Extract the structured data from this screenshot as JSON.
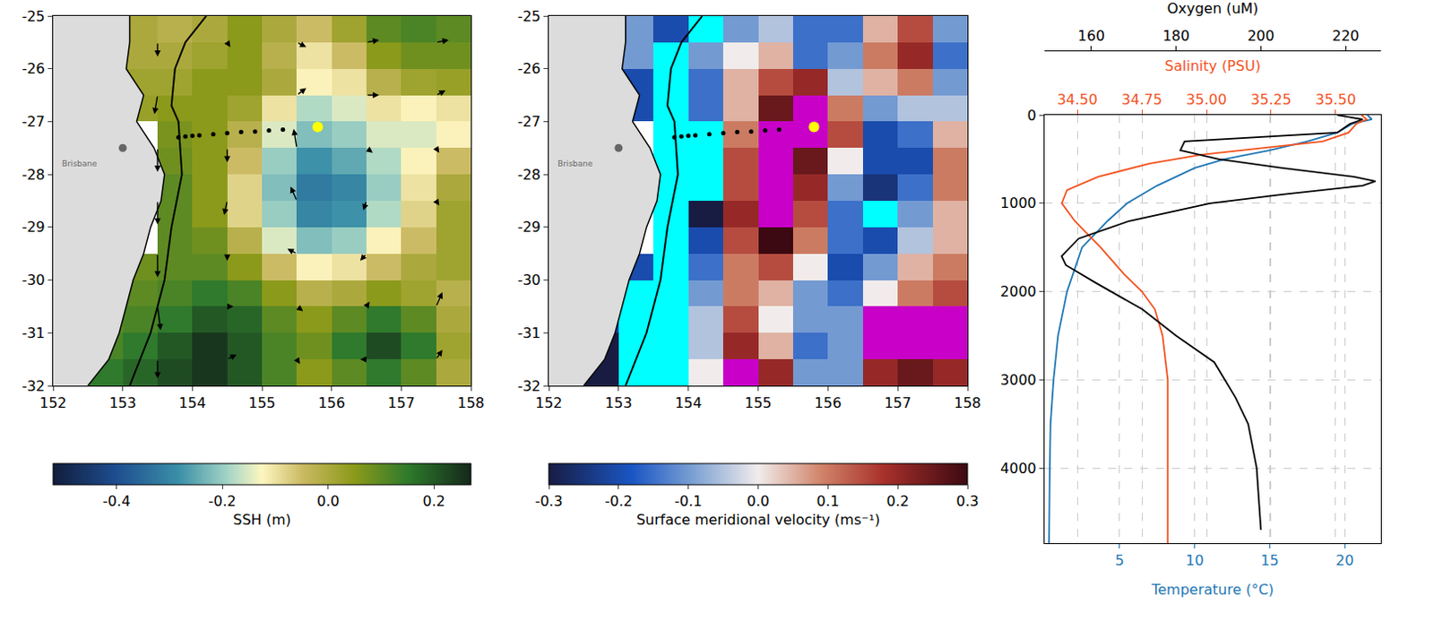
{
  "chart_data": [
    {
      "type": "heatmap",
      "xlim": [
        152,
        158
      ],
      "xticks": [
        152,
        153,
        154,
        155,
        156,
        157,
        158
      ],
      "ylim": [
        -32,
        -25
      ],
      "yticks": [
        -32,
        -31,
        -30,
        -29,
        -28,
        -27,
        -26,
        -25
      ],
      "colorbar_title": "SSH (m)",
      "zlim": [
        -0.52,
        0.27
      ],
      "zticks": [
        -0.4,
        -0.2,
        {
          "value": 0,
          "label": "0.0"
        },
        0.2
      ],
      "lon": [
        152.25,
        152.75,
        153.25,
        153.75,
        154.25,
        154.75,
        155.25,
        155.75,
        156.25,
        156.75,
        157.25,
        157.75
      ],
      "lat": [
        -25.25,
        -25.75,
        -26.25,
        -26.75,
        -27.25,
        -27.75,
        -28.25,
        -28.75,
        -29.25,
        -29.75,
        -30.25,
        -30.75,
        -31.25,
        -31.75
      ],
      "values": [
        [
          null,
          null,
          0.0,
          -0.02,
          0.0,
          0.05,
          0.0,
          -0.05,
          0.02,
          0.1,
          0.12,
          0.1
        ],
        [
          null,
          null,
          0.0,
          0.0,
          0.02,
          0.05,
          -0.02,
          -0.1,
          -0.05,
          0.05,
          0.08,
          0.08
        ],
        [
          null,
          null,
          0.02,
          0.02,
          0.05,
          0.05,
          0.0,
          -0.12,
          -0.1,
          -0.02,
          0.02,
          0.03
        ],
        [
          null,
          null,
          0.03,
          0.05,
          0.05,
          0.02,
          -0.1,
          -0.18,
          -0.15,
          -0.1,
          -0.12,
          -0.1
        ],
        [
          null,
          null,
          null,
          0.07,
          0.05,
          -0.02,
          -0.15,
          -0.22,
          -0.2,
          -0.15,
          -0.15,
          -0.12
        ],
        [
          null,
          null,
          null,
          0.08,
          0.05,
          -0.05,
          -0.2,
          -0.28,
          -0.25,
          -0.18,
          -0.12,
          -0.05
        ],
        [
          null,
          null,
          null,
          0.1,
          0.05,
          -0.08,
          -0.22,
          -0.32,
          -0.3,
          -0.2,
          -0.1,
          0.0
        ],
        [
          null,
          null,
          null,
          0.1,
          0.05,
          -0.08,
          -0.2,
          -0.3,
          -0.28,
          -0.18,
          -0.08,
          0.02
        ],
        [
          null,
          null,
          null,
          0.1,
          0.08,
          -0.02,
          -0.15,
          -0.22,
          -0.2,
          -0.12,
          -0.05,
          0.02
        ],
        [
          null,
          null,
          0.08,
          0.1,
          0.1,
          0.05,
          -0.05,
          -0.12,
          -0.1,
          -0.05,
          0.0,
          0.02
        ],
        [
          null,
          null,
          0.1,
          0.12,
          0.15,
          0.12,
          0.05,
          -0.02,
          0.0,
          0.05,
          0.02,
          -0.02
        ],
        [
          null,
          0.1,
          0.12,
          0.15,
          0.2,
          0.18,
          0.1,
          0.05,
          0.1,
          0.15,
          0.1,
          0.0
        ],
        [
          null,
          0.12,
          0.15,
          0.2,
          0.25,
          0.2,
          0.12,
          0.08,
          0.15,
          0.22,
          0.15,
          0.02
        ],
        [
          null,
          0.15,
          0.18,
          0.22,
          0.25,
          0.2,
          0.12,
          0.05,
          0.1,
          0.15,
          0.1,
          0.0
        ]
      ],
      "vectors": {
        "lon": [
          152.5,
          153.5,
          154.5,
          155.5,
          156.5,
          157.5
        ],
        "lat": [
          -25.5,
          -26.5,
          -27.5,
          -28.5,
          -29.5,
          -30.5,
          -31.5
        ],
        "u": [
          [
            null,
            0.0,
            0.05,
            0.15,
            0.2,
            0.2
          ],
          [
            null,
            -0.05,
            0.0,
            0.15,
            0.2,
            0.15
          ],
          [
            null,
            0.0,
            0.0,
            -0.05,
            0.1,
            0.05
          ],
          [
            null,
            0.0,
            -0.05,
            -0.1,
            -0.05,
            0.05
          ],
          [
            null,
            0.0,
            0.0,
            -0.15,
            -0.1,
            0.0
          ],
          [
            null,
            0.05,
            0.1,
            0.1,
            0.05,
            0.1
          ],
          [
            null,
            0.0,
            0.15,
            0.05,
            -0.1,
            0.1
          ]
        ],
        "v": [
          [
            null,
            -0.3,
            -0.1,
            -0.1,
            0.05,
            0.05
          ],
          [
            null,
            -0.4,
            -0.05,
            0.15,
            0.0,
            0.1
          ],
          [
            null,
            -0.5,
            -0.3,
            0.4,
            -0.1,
            -0.1
          ],
          [
            null,
            -0.5,
            -0.3,
            0.3,
            -0.2,
            -0.1
          ],
          [
            null,
            -0.5,
            -0.15,
            0.1,
            -0.15,
            0.0
          ],
          [
            null,
            -0.5,
            0.0,
            -0.1,
            0.1,
            0.3
          ],
          [
            null,
            -0.4,
            0.1,
            -0.1,
            0.0,
            0.2
          ]
        ]
      },
      "coastline": {
        "lon": [
          153.1,
          153.1,
          153.05,
          153.3,
          153.2,
          153.45,
          153.6,
          153.55,
          153.4,
          153.3,
          153.15,
          153.05,
          152.95,
          152.8,
          152.5
        ],
        "lat": [
          -25,
          -25.5,
          -26,
          -26.5,
          -27,
          -27.5,
          -28,
          -28.5,
          -29,
          -29.5,
          -30,
          -30.5,
          -31,
          -31.5,
          -32
        ]
      },
      "contour": {
        "lon": [
          154.2,
          153.9,
          153.75,
          153.7,
          153.8,
          153.85,
          153.7,
          153.6,
          153.4,
          153.1
        ],
        "lat": [
          -25,
          -25.5,
          -26,
          -26.7,
          -27,
          -28,
          -29,
          -30,
          -31,
          -32
        ]
      },
      "track": {
        "lon": [
          153.8,
          153.9,
          154.0,
          154.1,
          154.3,
          154.5,
          154.7,
          154.9,
          155.1,
          155.3
        ],
        "lat": [
          -27.3,
          -27.28,
          -27.27,
          -27.26,
          -27.24,
          -27.22,
          -27.2,
          -27.19,
          -27.17,
          -27.15
        ]
      },
      "station": {
        "lon": 155.8,
        "lat": -27.1,
        "color": "#ffff00"
      },
      "city": {
        "name": "Brisbane",
        "lon": 153.0,
        "lat": -27.5,
        "label_lon": 152.1,
        "label_lat": -27.8,
        "color": "#666666"
      }
    },
    {
      "type": "heatmap",
      "xlim": [
        152,
        158
      ],
      "xticks": [
        152,
        153,
        154,
        155,
        156,
        157,
        158
      ],
      "ylim": [
        -32,
        -25
      ],
      "yticks": [
        -32,
        -31,
        -30,
        -29,
        -28,
        -27,
        -26,
        -25
      ],
      "colorbar_title": "Surface meridional velocity (ms⁻¹)",
      "zlim": [
        -0.3,
        0.3
      ],
      "zticks": [
        -0.3,
        -0.2,
        -0.1,
        {
          "value": 0,
          "label": "0.0"
        },
        0.1,
        0.2,
        0.3
      ],
      "under_color": "#00ffff",
      "over_color": "#c800c8",
      "lon": [
        152.25,
        152.75,
        153.25,
        153.75,
        154.25,
        154.75,
        155.25,
        155.75,
        156.25,
        156.75,
        157.25,
        157.75
      ],
      "lat": [
        -25.25,
        -25.75,
        -26.25,
        -26.75,
        -27.25,
        -27.75,
        -28.25,
        -28.75,
        -29.25,
        -29.75,
        -30.25,
        -30.75,
        -31.25,
        -31.75
      ],
      "values": [
        [
          null,
          null,
          -0.1,
          -0.2,
          -0.4,
          -0.1,
          -0.05,
          -0.15,
          -0.15,
          0.05,
          0.15,
          -0.1
        ],
        [
          null,
          null,
          -0.1,
          -0.4,
          -0.1,
          0.0,
          0.05,
          -0.15,
          -0.1,
          0.1,
          0.2,
          -0.15
        ],
        [
          null,
          null,
          -0.2,
          -0.4,
          -0.15,
          0.05,
          0.15,
          0.2,
          -0.05,
          0.05,
          0.1,
          -0.1
        ],
        [
          null,
          null,
          -0.2,
          -0.4,
          -0.15,
          0.05,
          0.25,
          0.35,
          0.1,
          -0.1,
          -0.05,
          -0.05
        ],
        [
          null,
          null,
          null,
          -0.4,
          -0.35,
          0.1,
          0.4,
          0.4,
          0.15,
          -0.2,
          -0.15,
          0.05
        ],
        [
          null,
          null,
          null,
          -0.4,
          -0.35,
          0.15,
          0.4,
          0.25,
          0.0,
          -0.2,
          -0.2,
          0.1
        ],
        [
          null,
          null,
          null,
          -0.4,
          -0.35,
          0.15,
          0.4,
          0.2,
          -0.1,
          -0.25,
          -0.15,
          0.1
        ],
        [
          null,
          null,
          null,
          -0.4,
          -0.3,
          0.2,
          0.4,
          0.15,
          -0.15,
          -0.4,
          -0.1,
          0.05
        ],
        [
          null,
          null,
          null,
          -0.4,
          -0.2,
          0.15,
          0.3,
          0.1,
          -0.15,
          -0.2,
          -0.05,
          0.05
        ],
        [
          null,
          null,
          -0.2,
          -0.4,
          -0.15,
          0.1,
          0.15,
          0.0,
          -0.2,
          -0.1,
          0.05,
          0.1
        ],
        [
          null,
          null,
          -0.4,
          -0.4,
          -0.1,
          0.1,
          0.05,
          -0.1,
          -0.15,
          0.0,
          0.1,
          0.15
        ],
        [
          null,
          -0.2,
          -0.4,
          -0.4,
          -0.05,
          0.15,
          0.0,
          -0.1,
          -0.1,
          0.4,
          0.4,
          0.4
        ],
        [
          null,
          -0.3,
          -0.4,
          -0.4,
          -0.05,
          0.2,
          0.05,
          -0.15,
          -0.1,
          0.4,
          0.4,
          0.4
        ],
        [
          null,
          -0.3,
          -0.4,
          -0.4,
          0.0,
          0.4,
          0.2,
          -0.1,
          -0.1,
          0.2,
          0.25,
          0.2
        ]
      ],
      "coastline": {
        "lon": [
          153.1,
          153.1,
          153.05,
          153.3,
          153.2,
          153.45,
          153.6,
          153.55,
          153.4,
          153.3,
          153.15,
          153.05,
          152.95,
          152.8,
          152.5
        ],
        "lat": [
          -25,
          -25.5,
          -26,
          -26.5,
          -27,
          -27.5,
          -28,
          -28.5,
          -29,
          -29.5,
          -30,
          -30.5,
          -31,
          -31.5,
          -32
        ]
      },
      "contour": {
        "lon": [
          154.2,
          153.9,
          153.75,
          153.7,
          153.8,
          153.85,
          153.7,
          153.6,
          153.4,
          153.1
        ],
        "lat": [
          -25,
          -25.5,
          -26,
          -26.7,
          -27,
          -28,
          -29,
          -30,
          -31,
          -32
        ]
      },
      "track": {
        "lon": [
          153.8,
          153.9,
          154.0,
          154.1,
          154.3,
          154.5,
          154.7,
          154.9,
          155.1,
          155.3
        ],
        "lat": [
          -27.3,
          -27.28,
          -27.27,
          -27.26,
          -27.24,
          -27.22,
          -27.2,
          -27.19,
          -27.17,
          -27.15
        ]
      },
      "station": {
        "lon": 155.8,
        "lat": -27.1,
        "color": "#ffff00"
      },
      "city": {
        "name": "Brisbane",
        "lon": 153.0,
        "lat": -27.5,
        "label_lon": 152.1,
        "label_lat": -27.8,
        "color": "#666666"
      }
    },
    {
      "type": "line",
      "ylim": [
        4850,
        0
      ],
      "yticks": [
        0,
        1000,
        2000,
        3000,
        4000
      ],
      "grid": true,
      "series": [
        {
          "xlabel": "Temperature (°C)",
          "color": "#1f77b4",
          "axis": "bottom",
          "xlim": [
            0,
            22.4
          ],
          "xticks": [
            5,
            10,
            15,
            20
          ],
          "depth": [
            0,
            50,
            100,
            200,
            300,
            400,
            500,
            600,
            800,
            1000,
            1200,
            1500,
            2000,
            2500,
            3000,
            3500,
            4000,
            4850
          ],
          "values": [
            21.5,
            21.8,
            20.5,
            19.5,
            17.5,
            15.0,
            12.0,
            10.0,
            7.5,
            5.5,
            4.2,
            2.5,
            1.5,
            0.9,
            0.6,
            0.4,
            0.35,
            0.3
          ]
        },
        {
          "xlabel": "Salinity (PSU)",
          "color": "#f4511e",
          "axis": "top",
          "xlim": [
            34.373,
            35.675
          ],
          "xticks": [
            {
              "value": 34.5,
              "label": "34.50"
            },
            34.75,
            {
              "value": 35,
              "label": "35.00"
            },
            35.25,
            {
              "value": 35.5,
              "label": "35.50"
            }
          ],
          "depth": [
            0,
            50,
            100,
            200,
            300,
            350,
            450,
            550,
            700,
            850,
            1000,
            1200,
            1500,
            1800,
            2000,
            2200,
            2500,
            3000,
            4000,
            4850
          ],
          "values": [
            35.6,
            35.62,
            35.58,
            35.55,
            35.45,
            35.3,
            34.98,
            34.78,
            34.58,
            34.46,
            34.44,
            34.49,
            34.59,
            34.68,
            34.75,
            34.8,
            34.83,
            34.85,
            34.85,
            34.85
          ]
        },
        {
          "xlabel": "Oxygen (uM)",
          "color": "#000000",
          "axis": "top_outer",
          "xlim": [
            148.96,
            228.3
          ],
          "xticks": [
            160,
            180,
            200,
            220
          ],
          "depth": [
            0,
            50,
            100,
            200,
            300,
            400,
            500,
            600,
            700,
            750,
            800,
            900,
            1000,
            1200,
            1400,
            1600,
            1700,
            1900,
            2200,
            2500,
            2800,
            3200,
            3500,
            4000,
            4700
          ],
          "values": [
            218,
            224,
            221,
            218,
            182,
            181,
            190,
            205,
            222,
            227,
            224,
            205,
            188,
            169,
            157,
            153,
            154,
            161,
            172,
            180,
            189,
            194,
            197,
            199,
            200
          ]
        }
      ]
    }
  ]
}
